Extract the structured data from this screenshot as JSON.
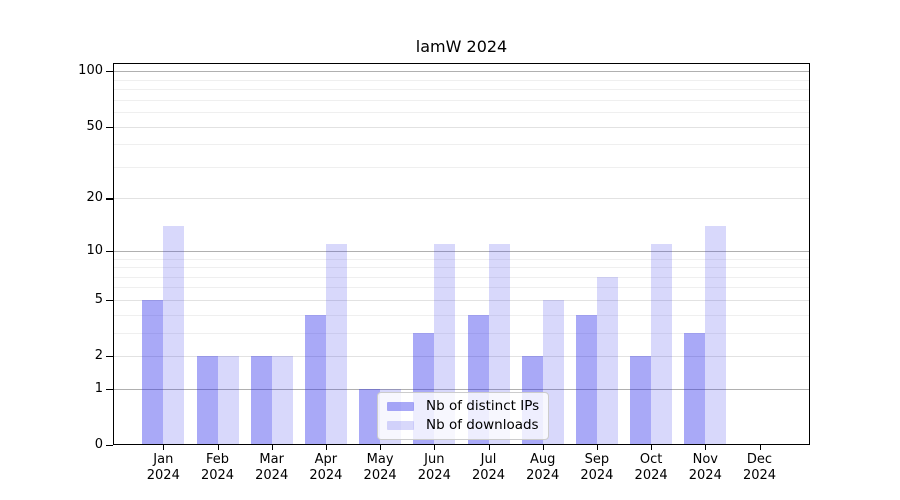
{
  "title": "lamW 2024",
  "colors": {
    "distinct_ips": "rgba(40,40,235,0.40)",
    "downloads": "rgba(40,40,235,0.18)",
    "axis": "#000000",
    "grid_decade": "#b0b0b0",
    "grid_labeled": "#e2e2e2",
    "grid_minor": "#efefef",
    "legend_border": "#cccccc",
    "legend_background": "rgba(255,255,255,0.8)"
  },
  "legend": {
    "items": [
      {
        "label": "Nb of distinct IPs",
        "color_key": "distinct_ips"
      },
      {
        "label": "Nb of downloads",
        "color_key": "downloads"
      }
    ]
  },
  "x_axis": {
    "months": [
      "Jan",
      "Feb",
      "Mar",
      "Apr",
      "May",
      "Jun",
      "Jul",
      "Aug",
      "Sep",
      "Oct",
      "Nov",
      "Dec"
    ],
    "year": "2024"
  },
  "y_axis": {
    "scale": "log1p",
    "ticks": [
      0,
      1,
      2,
      5,
      10,
      20,
      50,
      100
    ],
    "decade_ticks": [
      1,
      10,
      100
    ],
    "minor_gridlines": [
      3,
      4,
      6,
      7,
      8,
      9,
      30,
      40,
      60,
      70,
      80,
      90
    ]
  },
  "chart_data": {
    "type": "bar",
    "title": "lamW 2024",
    "categories": [
      "Jan 2024",
      "Feb 2024",
      "Mar 2024",
      "Apr 2024",
      "May 2024",
      "Jun 2024",
      "Jul 2024",
      "Aug 2024",
      "Sep 2024",
      "Oct 2024",
      "Nov 2024",
      "Dec 2024"
    ],
    "series": [
      {
        "name": "Nb of distinct IPs",
        "color_key": "distinct_ips",
        "values": [
          5,
          2,
          2,
          4,
          1,
          3,
          4,
          2,
          4,
          2,
          3,
          0
        ]
      },
      {
        "name": "Nb of downloads",
        "color_key": "downloads",
        "values": [
          14,
          2,
          2,
          11,
          1,
          11,
          11,
          5,
          7,
          11,
          14,
          0
        ]
      }
    ],
    "xlabel": "",
    "ylabel": "",
    "yscale": "log1p",
    "yticks": [
      0,
      1,
      2,
      5,
      10,
      20,
      50,
      100
    ],
    "ylim": [
      0,
      110
    ],
    "grid": true,
    "legend_position": "inside lower-left-of-center"
  }
}
